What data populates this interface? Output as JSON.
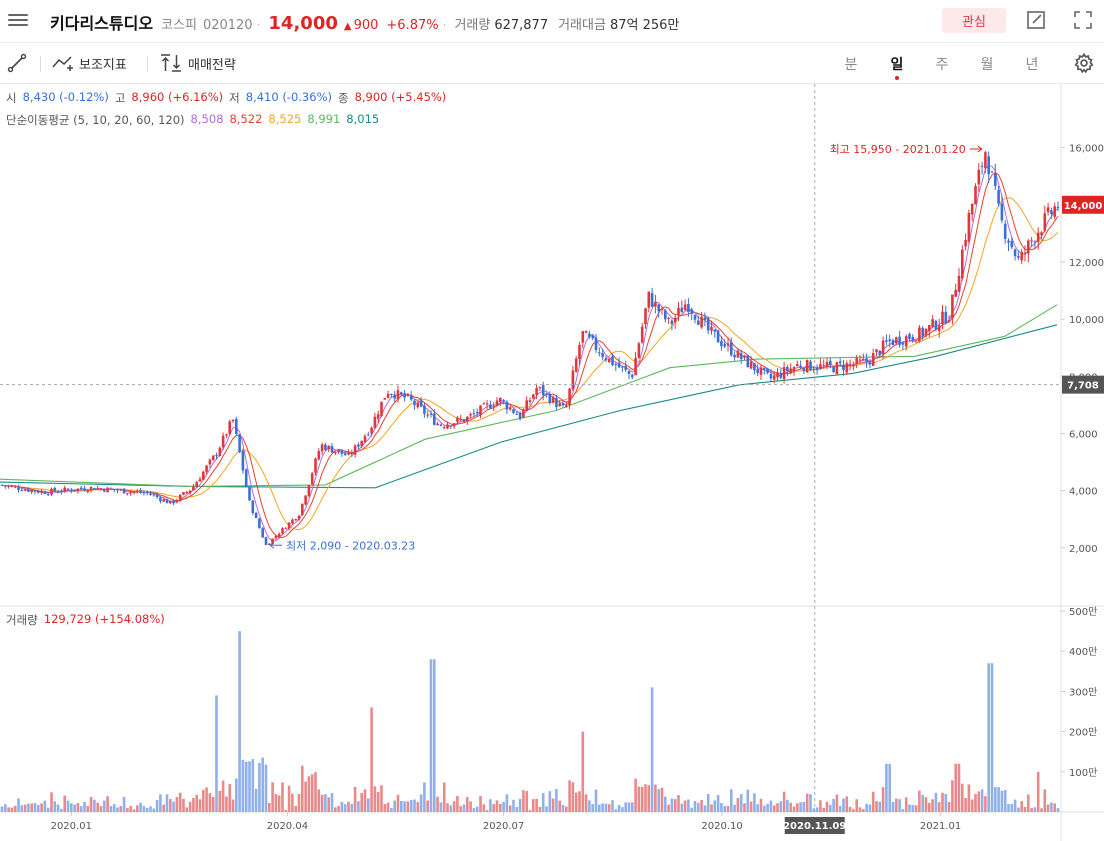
{
  "header": {
    "stock_name": "키다리스튜디오",
    "market": "코스피",
    "code": "020120",
    "price": "14,000",
    "change": "900",
    "change_rate": "+6.87%",
    "volume_label": "거래량",
    "volume": "627,877",
    "amount_label": "거래대금",
    "amount": "87억 256만",
    "watch_label": "관심"
  },
  "toolbar": {
    "indicator_label": "보조지표",
    "strategy_label": "매매전략",
    "periods": [
      "분",
      "일",
      "주",
      "월",
      "년"
    ],
    "active_period": "일"
  },
  "ohlc_legend": {
    "open_label": "시",
    "open": "8,430 (-0.12%)",
    "high_label": "고",
    "high": "8,960 (+6.16%)",
    "low_label": "저",
    "low": "8,410 (-0.36%)",
    "close_label": "종",
    "close": "8,900 (+5.45%)"
  },
  "ma_legend": {
    "label": "단순이동평균 (5, 10, 20, 60, 120)",
    "values": [
      "8,508",
      "8,522",
      "8,525",
      "8,991",
      "8,015"
    ],
    "colors": [
      "#b36be0",
      "#e8412e",
      "#f2a623",
      "#5cb85c",
      "#178a8a"
    ]
  },
  "volume_legend": {
    "label": "거래량",
    "value": "129,729 (+154.08%)"
  },
  "annotations": {
    "high": "최고 15,950 - 2021.01.20",
    "low": "최저 2,090 - 2020.03.23"
  },
  "price_tags": {
    "current": "14,000",
    "crosshair": "7,708",
    "crosshair_date": "2020.11.09"
  },
  "chart_data": {
    "type": "candlestick",
    "y_ticks": [
      "16,000",
      "14,000",
      "12,000",
      "10,000",
      "8,000",
      "6,000",
      "4,000",
      "2,000"
    ],
    "y_tick_values": [
      16000,
      14000,
      12000,
      10000,
      8000,
      6000,
      4000,
      2000
    ],
    "ylim": [
      0,
      17000
    ],
    "volume_ticks": [
      "500만",
      "400만",
      "300만",
      "200만",
      "100만"
    ],
    "volume_tick_values": [
      500,
      400,
      300,
      200,
      100
    ],
    "volume_lim": [
      0,
      500
    ],
    "x_ticks": [
      "2020.01",
      "2020.04",
      "2020.07",
      "2020.10",
      "2021.01"
    ],
    "price_path": [
      [
        "2019.12.02",
        4200
      ],
      [
        "2019.12.20",
        3950
      ],
      [
        "2020.01.10",
        4100
      ],
      [
        "2020.02.03",
        3900
      ],
      [
        "2020.02.12",
        3550
      ],
      [
        "2020.02.21",
        4100
      ],
      [
        "2020.03.02",
        5300
      ],
      [
        "2020.03.09",
        6500
      ],
      [
        "2020.03.16",
        3600
      ],
      [
        "2020.03.23",
        2090
      ],
      [
        "2020.04.06",
        3200
      ],
      [
        "2020.04.15",
        5600
      ],
      [
        "2020.04.27",
        5200
      ],
      [
        "2020.05.06",
        6200
      ],
      [
        "2020.05.13",
        7500
      ],
      [
        "2020.05.22",
        7200
      ],
      [
        "2020.06.04",
        6300
      ],
      [
        "2020.06.15",
        6500
      ],
      [
        "2020.06.29",
        7200
      ],
      [
        "2020.07.08",
        6600
      ],
      [
        "2020.07.15",
        7600
      ],
      [
        "2020.07.27",
        6800
      ],
      [
        "2020.08.03",
        9500
      ],
      [
        "2020.08.14",
        8600
      ],
      [
        "2020.08.24",
        8000
      ],
      [
        "2020.08.31",
        10800
      ],
      [
        "2020.09.09",
        9800
      ],
      [
        "2020.09.16",
        10600
      ],
      [
        "2020.09.25",
        9600
      ],
      [
        "2020.10.08",
        8700
      ],
      [
        "2020.10.21",
        7900
      ],
      [
        "2020.11.02",
        8400
      ],
      [
        "2020.11.16",
        8300
      ],
      [
        "2020.12.01",
        8500
      ],
      [
        "2020.12.10",
        9200
      ],
      [
        "2020.12.24",
        9500
      ],
      [
        "2021.01.05",
        10200
      ],
      [
        "2021.01.13",
        13600
      ],
      [
        "2021.01.20",
        15950
      ],
      [
        "2021.01.26",
        13500
      ],
      [
        "2021.02.03",
        12000
      ],
      [
        "2021.02.10",
        13000
      ],
      [
        "2021.02.19",
        14000
      ]
    ],
    "ma120_path": [
      [
        "2019.12.02",
        4300
      ],
      [
        "2020.02.20",
        4150
      ],
      [
        "2020.05.08",
        4100
      ],
      [
        "2020.06.30",
        5700
      ],
      [
        "2020.08.19",
        6800
      ],
      [
        "2020.10.08",
        7700
      ],
      [
        "2020.11.25",
        8100
      ],
      [
        "2020.12.30",
        8700
      ],
      [
        "2021.02.19",
        9800
      ]
    ],
    "ma60_path": [
      [
        "2019.12.02",
        4400
      ],
      [
        "2020.02.20",
        4150
      ],
      [
        "2020.04.17",
        4200
      ],
      [
        "2020.05.29",
        5800
      ],
      [
        "2020.07.23",
        6800
      ],
      [
        "2020.09.09",
        8300
      ],
      [
        "2020.10.16",
        8600
      ],
      [
        "2020.12.21",
        8700
      ],
      [
        "2021.01.28",
        9400
      ],
      [
        "2021.02.19",
        10500
      ]
    ],
    "volume_spikes": [
      [
        "2020.03.02",
        290
      ],
      [
        "2020.03.12",
        450
      ],
      [
        "2020.05.06",
        260
      ],
      [
        "2020.06.01",
        380
      ],
      [
        "2020.08.03",
        200
      ],
      [
        "2020.09.01",
        310
      ],
      [
        "2020.12.10",
        120
      ],
      [
        "2021.01.08",
        120
      ],
      [
        "2021.01.22",
        370
      ],
      [
        "2021.02.11",
        100
      ]
    ]
  }
}
